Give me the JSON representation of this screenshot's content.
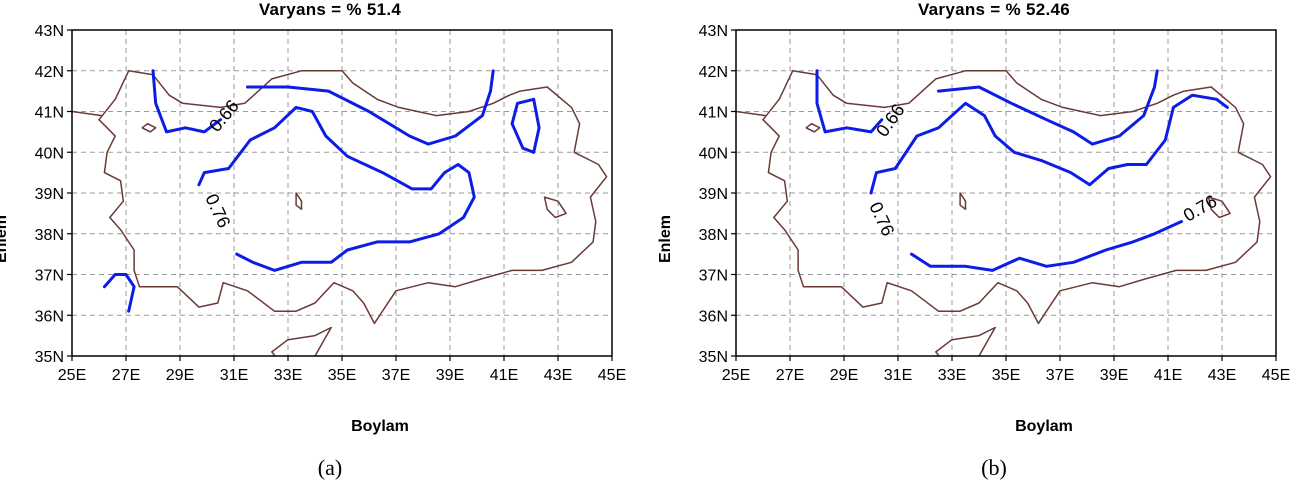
{
  "panels": [
    {
      "id": "a",
      "title": "Varyans = % 51.4",
      "xlabel": "Boylam",
      "ylabel": "Enlem",
      "caption": "(a)",
      "x_ticks": [
        "25E",
        "27E",
        "29E",
        "31E",
        "33E",
        "35E",
        "37E",
        "39E",
        "41E",
        "43E",
        "45E"
      ],
      "y_ticks": [
        "35N",
        "36N",
        "37N",
        "38N",
        "39N",
        "40N",
        "41N",
        "42N",
        "43N"
      ],
      "contours": [
        {
          "label": "0.66",
          "label_pos": [
            30.8,
            40.8
          ],
          "label_angle": -50,
          "points": [
            [
              28,
              42
            ],
            [
              28.1,
              41.2
            ],
            [
              28.5,
              40.5
            ],
            [
              29.2,
              40.6
            ],
            [
              29.9,
              40.5
            ],
            [
              30.5,
              40.8
            ]
          ]
        },
        {
          "label": "",
          "points": [
            [
              31.5,
              41.6
            ],
            [
              33,
              41.6
            ],
            [
              34.5,
              41.5
            ],
            [
              36,
              41
            ],
            [
              37.5,
              40.4
            ],
            [
              38.2,
              40.2
            ],
            [
              39.2,
              40.4
            ],
            [
              40.2,
              40.9
            ],
            [
              40.5,
              41.5
            ],
            [
              40.6,
              42
            ]
          ]
        },
        {
          "label": "",
          "points": [
            [
              29.7,
              39.2
            ],
            [
              29.9,
              39.5
            ],
            [
              30.8,
              39.6
            ],
            [
              31.6,
              40.3
            ],
            [
              32.5,
              40.6
            ],
            [
              33.3,
              41.1
            ],
            [
              33.9,
              41.0
            ],
            [
              34.4,
              40.4
            ],
            [
              35.2,
              39.9
            ],
            [
              36.5,
              39.5
            ],
            [
              37.6,
              39.1
            ],
            [
              38.3,
              39.1
            ],
            [
              38.8,
              39.5
            ],
            [
              39.3,
              39.7
            ],
            [
              39.7,
              39.5
            ],
            [
              39.9,
              38.9
            ],
            [
              39.5,
              38.4
            ],
            [
              38.6,
              38
            ],
            [
              37.5,
              37.8
            ],
            [
              36.3,
              37.8
            ],
            [
              35.2,
              37.6
            ],
            [
              34.6,
              37.3
            ],
            [
              33.5,
              37.3
            ],
            [
              32.5,
              37.1
            ],
            [
              31.7,
              37.3
            ],
            [
              31.1,
              37.5
            ]
          ]
        },
        {
          "label": "0.76",
          "label_pos": [
            30.2,
            38.5
          ],
          "label_angle": 65,
          "points": []
        },
        {
          "label": "",
          "points": [
            [
              41.3,
              40.7
            ],
            [
              41.5,
              41.2
            ],
            [
              42.1,
              41.3
            ],
            [
              42.3,
              40.6
            ],
            [
              42.1,
              40.0
            ],
            [
              41.7,
              40.1
            ],
            [
              41.3,
              40.7
            ]
          ]
        },
        {
          "label": "",
          "points": [
            [
              26.2,
              36.7
            ],
            [
              26.6,
              37.0
            ],
            [
              27.0,
              37.0
            ],
            [
              27.3,
              36.7
            ],
            [
              27.1,
              36.1
            ]
          ]
        }
      ]
    },
    {
      "id": "b",
      "title": "Varyans = % 52.46",
      "xlabel": "Boylam",
      "ylabel": "Enlem",
      "caption": "(b)",
      "x_ticks": [
        "25E",
        "27E",
        "29E",
        "31E",
        "33E",
        "35E",
        "37E",
        "39E",
        "41E",
        "43E",
        "45E"
      ],
      "y_ticks": [
        "35N",
        "36N",
        "37N",
        "38N",
        "39N",
        "40N",
        "41N",
        "42N",
        "43N"
      ],
      "contours": [
        {
          "label": "0.66",
          "label_pos": [
            30.9,
            40.7
          ],
          "label_angle": -55,
          "points": [
            [
              28,
              42
            ],
            [
              28.0,
              41.2
            ],
            [
              28.3,
              40.5
            ],
            [
              29.1,
              40.6
            ],
            [
              30.0,
              40.5
            ],
            [
              30.4,
              40.8
            ]
          ]
        },
        {
          "label": "",
          "points": [
            [
              32.5,
              41.5
            ],
            [
              34,
              41.6
            ],
            [
              35.2,
              41.2
            ],
            [
              36.5,
              40.8
            ],
            [
              37.5,
              40.5
            ],
            [
              38.2,
              40.2
            ],
            [
              39.2,
              40.4
            ],
            [
              40.1,
              40.9
            ],
            [
              40.5,
              41.6
            ],
            [
              40.6,
              42
            ]
          ]
        },
        {
          "label": "",
          "points": [
            [
              30,
              39
            ],
            [
              30.2,
              39.5
            ],
            [
              30.9,
              39.6
            ],
            [
              31.7,
              40.4
            ],
            [
              32.5,
              40.6
            ],
            [
              33.5,
              41.2
            ],
            [
              34.2,
              40.9
            ],
            [
              34.6,
              40.4
            ],
            [
              35.3,
              40.0
            ],
            [
              36.3,
              39.8
            ],
            [
              37.4,
              39.5
            ],
            [
              38.1,
              39.2
            ],
            [
              38.8,
              39.6
            ],
            [
              39.5,
              39.7
            ],
            [
              40.2,
              39.7
            ],
            [
              40.9,
              40.3
            ],
            [
              41.2,
              41.1
            ],
            [
              41.9,
              41.4
            ],
            [
              42.8,
              41.3
            ],
            [
              43.2,
              41.1
            ]
          ]
        },
        {
          "label": "0.76",
          "label_pos": [
            30.2,
            38.3
          ],
          "label_angle": 65,
          "points": []
        },
        {
          "label": "0.76",
          "label_pos": [
            42.3,
            38.5
          ],
          "label_angle": -30,
          "points": [
            [
              31.5,
              37.5
            ],
            [
              32.2,
              37.2
            ],
            [
              33.5,
              37.2
            ],
            [
              34.5,
              37.1
            ],
            [
              35.5,
              37.4
            ],
            [
              36.5,
              37.2
            ],
            [
              37.5,
              37.3
            ],
            [
              38.7,
              37.6
            ],
            [
              39.7,
              37.8
            ],
            [
              40.5,
              38
            ],
            [
              41.5,
              38.3
            ]
          ]
        }
      ]
    }
  ],
  "colors": {
    "contour": "#0c1de6",
    "coast": "#6b3a36",
    "grid": "#9a9a9a",
    "axis": "#000000",
    "background": "#ffffff"
  }
}
